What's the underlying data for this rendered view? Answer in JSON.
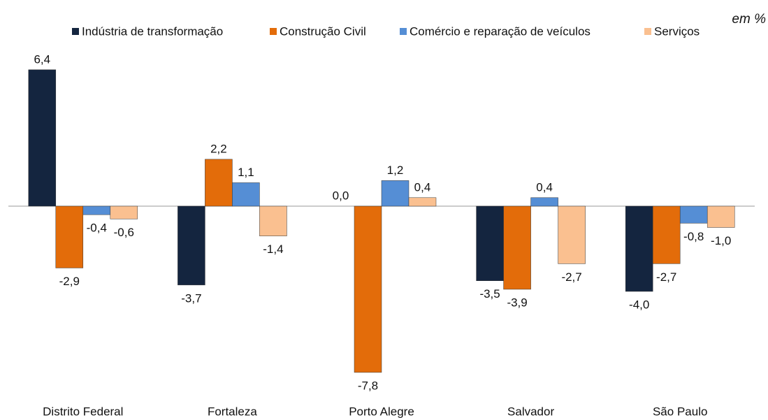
{
  "chart_data": {
    "type": "bar",
    "unit_note": "em %",
    "categories": [
      "Distrito Federal",
      "Fortaleza",
      "Porto Alegre",
      "Salvador",
      "São Paulo"
    ],
    "series": [
      {
        "name": "Indústria de transformação",
        "color": "#14253f",
        "values": [
          6.4,
          -3.7,
          0.0,
          -3.5,
          -4.0
        ],
        "value_labels": [
          "6,4",
          "-3,7",
          "0,0",
          "-3,5",
          "-4,0"
        ]
      },
      {
        "name": "Construção Civil",
        "color": "#e36c0a",
        "values": [
          -2.9,
          2.2,
          -7.8,
          -3.9,
          -2.7
        ],
        "value_labels": [
          "-2,9",
          "2,2",
          "-7,8",
          "-3,9",
          "-2,7"
        ]
      },
      {
        "name": "Comércio e reparação de veículos",
        "color": "#558ed5",
        "values": [
          -0.4,
          1.1,
          1.2,
          0.4,
          -0.8
        ],
        "value_labels": [
          "-0,4",
          "1,1",
          "1,2",
          "0,4",
          "-0,8"
        ]
      },
      {
        "name": "Serviços",
        "color": "#fac090",
        "values": [
          -0.6,
          -1.4,
          0.4,
          -2.7,
          -1.0
        ],
        "value_labels": [
          "-0,6",
          "-1,4",
          "0,4",
          "-2,7",
          "-1,0"
        ]
      }
    ],
    "legend": "top"
  }
}
